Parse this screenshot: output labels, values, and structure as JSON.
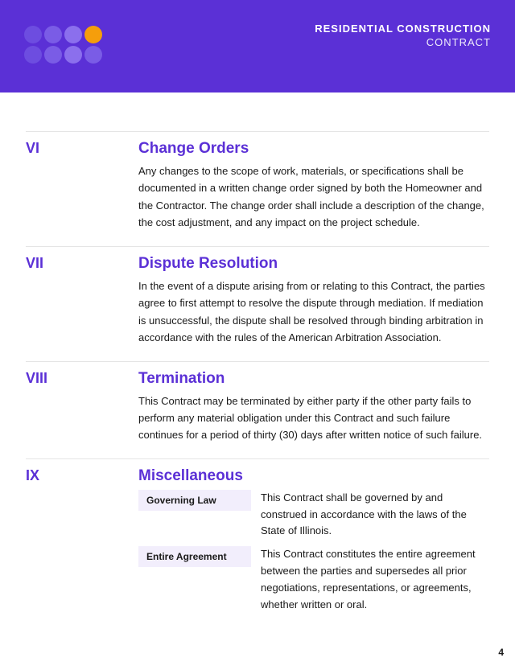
{
  "header": {
    "title": "RESIDENTIAL CONSTRUCTION",
    "subtitle": "CONTRACT",
    "logo_colors": [
      "#6d4de0",
      "#7a5ce6",
      "#8b6fed",
      "#f59e0b",
      "#6d4de0",
      "#7a5ce6",
      "#8b6fed",
      "#7a5ce6"
    ]
  },
  "sections": [
    {
      "num": "VI",
      "title": "Change Orders",
      "text": "Any changes to the scope of work, materials, or specifications shall be documented in a written change order signed by both the Homeowner and the Contractor. The change order shall include a description of the change, the cost adjustment, and any impact on the project schedule."
    },
    {
      "num": "VII",
      "title": "Dispute Resolution",
      "text": "In the event of a dispute arising from or relating to this Contract, the parties agree to first attempt to resolve the dispute through mediation. If mediation is unsuccessful, the dispute shall be resolved through binding arbitration in accordance with the rules of the American Arbitration Association."
    },
    {
      "num": "VIII",
      "title": "Termination",
      "text": "This Contract may be terminated by either party if the other party fails to perform any material obligation under this Contract and such failure continues for a period of thirty (30) days after written notice of such failure."
    }
  ],
  "misc": {
    "num": "IX",
    "title": "Miscellaneous",
    "items": [
      {
        "label": "Governing Law",
        "text": "This Contract shall be governed by and construed in accordance with the laws of the State of Illinois."
      },
      {
        "label": "Entire Agreement",
        "text": "This Contract constitutes the entire agreement between the parties and supersedes all prior negotiations, representations, or agreements, whether written or oral."
      }
    ]
  },
  "page_number": "4"
}
